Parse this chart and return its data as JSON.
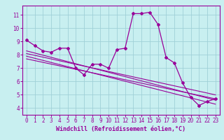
{
  "xlabel": "Windchill (Refroidissement éolien,°C)",
  "xlim": [
    -0.5,
    23.5
  ],
  "ylim": [
    3.5,
    11.7
  ],
  "xticks": [
    0,
    1,
    2,
    3,
    4,
    5,
    6,
    7,
    8,
    9,
    10,
    11,
    12,
    13,
    14,
    15,
    16,
    17,
    18,
    19,
    20,
    21,
    22,
    23
  ],
  "yticks": [
    4,
    5,
    6,
    7,
    8,
    9,
    10,
    11
  ],
  "bg_color": "#c8eff0",
  "grid_color": "#a0d0d8",
  "line_color": "#990099",
  "main_line_x": [
    0,
    1,
    2,
    3,
    4,
    5,
    6,
    7,
    8,
    9,
    10,
    11,
    12,
    13,
    14,
    15,
    16,
    17,
    18,
    19,
    20,
    21,
    22,
    23
  ],
  "main_line_y": [
    9.1,
    8.7,
    8.3,
    8.2,
    8.5,
    8.5,
    7.0,
    6.5,
    7.3,
    7.3,
    7.0,
    8.4,
    8.5,
    11.1,
    11.1,
    11.2,
    10.3,
    7.8,
    7.4,
    5.9,
    4.8,
    4.2,
    4.5,
    4.7
  ],
  "reg_lines": [
    {
      "x": [
        0,
        23
      ],
      "y": [
        8.3,
        4.6
      ]
    },
    {
      "x": [
        0,
        23
      ],
      "y": [
        7.9,
        4.3
      ]
    },
    {
      "x": [
        0,
        23
      ],
      "y": [
        8.1,
        5.0
      ]
    },
    {
      "x": [
        0,
        23
      ],
      "y": [
        7.7,
        4.7
      ]
    }
  ],
  "tick_fontsize": 5.5,
  "xlabel_fontsize": 6.0
}
